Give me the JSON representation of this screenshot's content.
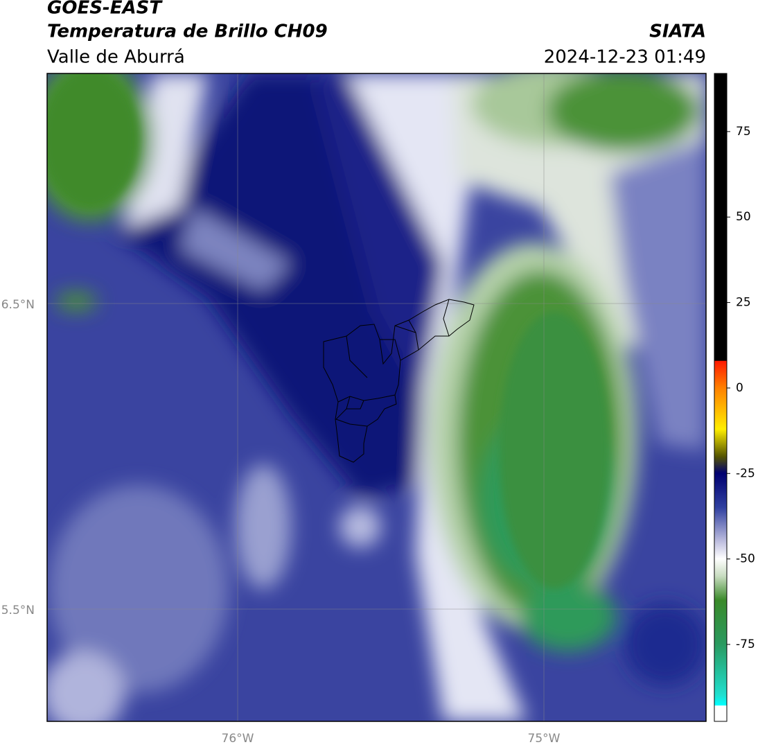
{
  "header": {
    "title": "GOES-EAST",
    "subtitle": "Temperatura de Brillo CH09",
    "region": "Valle de Aburrá",
    "source": "SIATA",
    "datetime": "2024-12-23 01:49"
  },
  "map": {
    "lat_labels": [
      "6.5°N",
      "5.5°N"
    ],
    "lon_labels": [
      "76°W",
      "75°W"
    ]
  },
  "colorbar": {
    "lim": [
      -97.5,
      92
    ],
    "ticks": [
      75,
      50,
      25,
      0,
      -25,
      -50,
      -75
    ]
  }
}
